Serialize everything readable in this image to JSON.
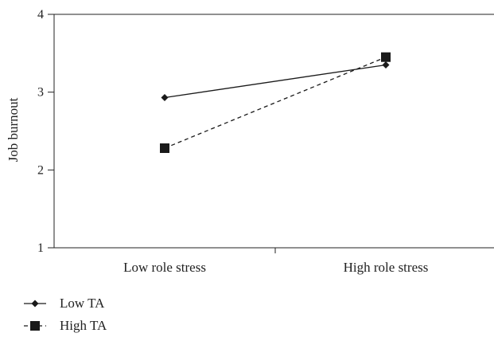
{
  "chart_data": {
    "type": "line",
    "categories": [
      "Low role stress",
      "High role stress"
    ],
    "ylabel": "Job burnout",
    "xlabel": "",
    "title": "",
    "ylim": [
      1,
      4
    ],
    "yticks": [
      "1",
      "2",
      "3",
      "4"
    ],
    "grid": false,
    "legend_position": "bottom-left",
    "series": [
      {
        "name": "Low TA",
        "values": [
          2.93,
          3.35
        ],
        "marker": "diamond",
        "line": "solid",
        "color": "#1a1a1a"
      },
      {
        "name": "High TA",
        "values": [
          2.28,
          3.45
        ],
        "marker": "square",
        "line": "dashed",
        "color": "#1a1a1a"
      }
    ]
  }
}
